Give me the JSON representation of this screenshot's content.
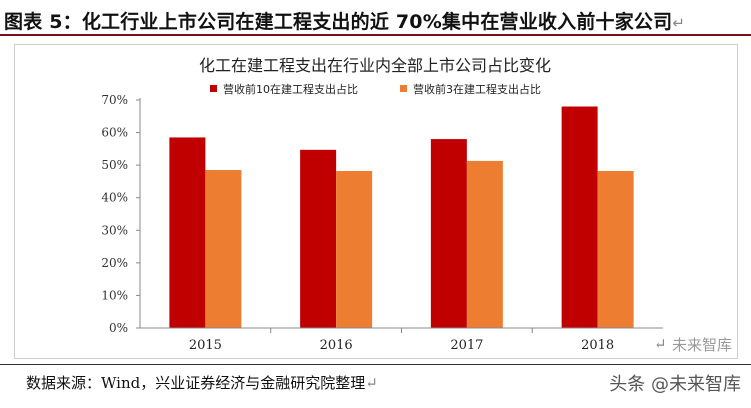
{
  "caption": "图表 5：化工行业上市公司在建工程支出的近 70%集中在营业收入前十家公司",
  "return_mark": "↵",
  "source": "数据来源：Wind，兴业证券经济与金融研究院整理",
  "watermark": {
    "text": "头条 @未来智库",
    "top_text": "未来智库"
  },
  "colors": {
    "series1": "#c00000",
    "series2": "#ed7d31",
    "caption_rule": "#7a0f14"
  },
  "chart_data": {
    "type": "bar",
    "title": "化工在建工程支出在行业内全部上市公司占比变化",
    "categories": [
      "2015",
      "2016",
      "2017",
      "2018"
    ],
    "series": [
      {
        "name": "营收前10在建工程支出占比",
        "values": [
          58.5,
          54.7,
          58.0,
          68.0
        ]
      },
      {
        "name": "营收前3在建工程支出占比",
        "values": [
          48.5,
          48.2,
          51.3,
          48.2
        ]
      }
    ],
    "ylim": [
      0,
      70
    ],
    "yticks": [
      "0%",
      "10%",
      "20%",
      "30%",
      "40%",
      "50%",
      "60%",
      "70%"
    ],
    "xlabel": "",
    "ylabel": "",
    "grid": false,
    "legend": "top"
  }
}
